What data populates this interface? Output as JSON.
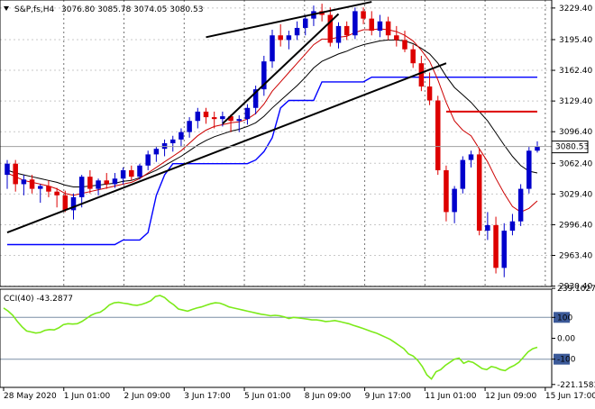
{
  "header": {
    "symbol": "S&P,fs,H4",
    "ohlc": "3076.80 3085.78 3074.05 3080.53"
  },
  "cci_label": "CCI(40) -43.2877",
  "colors": {
    "background": "#ffffff",
    "grid": "#000000",
    "bull": "#0000cc",
    "bear": "#dd0000",
    "ma_fast": "#cc0000",
    "ma_slow": "#000000",
    "envelope": "#0000ff",
    "cci": "#7cea1a",
    "trendline": "#000000",
    "level_line": "#dd0000"
  },
  "chart_data": [
    {
      "type": "candlestick",
      "title": "S&P,fs,H4",
      "ylim": [
        2930.0,
        3238.0
      ],
      "y_ticks": [
        "3229.40",
        "3195.40",
        "3162.40",
        "3129.40",
        "3096.40",
        "3062.40",
        "3029.40",
        "2996.40",
        "2963.40",
        "2930.40"
      ],
      "x_ticks": [
        "28 May 2020",
        "1 Jun 01:00",
        "2 Jun 09:00",
        "3 Jun 17:00",
        "5 Jun 01:00",
        "8 Jun 09:00",
        "9 Jun 17:00",
        "11 Jun 01:00",
        "12 Jun 09:00",
        "15 Jun 17:00"
      ],
      "current_price_label": "3080.53",
      "candles": [
        {
          "o": 3050,
          "h": 3066,
          "l": 3035,
          "c": 3062
        },
        {
          "o": 3062,
          "h": 3066,
          "l": 3032,
          "c": 3040
        },
        {
          "o": 3040,
          "h": 3050,
          "l": 3028,
          "c": 3045
        },
        {
          "o": 3045,
          "h": 3050,
          "l": 3030,
          "c": 3035
        },
        {
          "o": 3035,
          "h": 3040,
          "l": 3020,
          "c": 3038
        },
        {
          "o": 3038,
          "h": 3044,
          "l": 3026,
          "c": 3032
        },
        {
          "o": 3032,
          "h": 3036,
          "l": 3015,
          "c": 3028
        },
        {
          "o": 3028,
          "h": 3033,
          "l": 3010,
          "c": 3012
        },
        {
          "o": 3012,
          "h": 3030,
          "l": 3002,
          "c": 3026
        },
        {
          "o": 3026,
          "h": 3050,
          "l": 3015,
          "c": 3048
        },
        {
          "o": 3048,
          "h": 3055,
          "l": 3030,
          "c": 3035
        },
        {
          "o": 3035,
          "h": 3046,
          "l": 3028,
          "c": 3044
        },
        {
          "o": 3044,
          "h": 3052,
          "l": 3035,
          "c": 3040
        },
        {
          "o": 3040,
          "h": 3052,
          "l": 3036,
          "c": 3046
        },
        {
          "o": 3046,
          "h": 3058,
          "l": 3040,
          "c": 3055
        },
        {
          "o": 3055,
          "h": 3060,
          "l": 3044,
          "c": 3048
        },
        {
          "o": 3048,
          "h": 3062,
          "l": 3045,
          "c": 3060
        },
        {
          "o": 3060,
          "h": 3076,
          "l": 3055,
          "c": 3072
        },
        {
          "o": 3072,
          "h": 3080,
          "l": 3064,
          "c": 3078
        },
        {
          "o": 3078,
          "h": 3088,
          "l": 3070,
          "c": 3084
        },
        {
          "o": 3084,
          "h": 3092,
          "l": 3075,
          "c": 3088
        },
        {
          "o": 3088,
          "h": 3100,
          "l": 3080,
          "c": 3096
        },
        {
          "o": 3096,
          "h": 3112,
          "l": 3090,
          "c": 3108
        },
        {
          "o": 3108,
          "h": 3122,
          "l": 3100,
          "c": 3118
        },
        {
          "o": 3118,
          "h": 3122,
          "l": 3105,
          "c": 3112
        },
        {
          "o": 3112,
          "h": 3118,
          "l": 3100,
          "c": 3110
        },
        {
          "o": 3110,
          "h": 3118,
          "l": 3102,
          "c": 3113
        },
        {
          "o": 3113,
          "h": 3115,
          "l": 3096,
          "c": 3108
        },
        {
          "o": 3108,
          "h": 3114,
          "l": 3096,
          "c": 3110
        },
        {
          "o": 3110,
          "h": 3126,
          "l": 3104,
          "c": 3122
        },
        {
          "o": 3122,
          "h": 3146,
          "l": 3115,
          "c": 3142
        },
        {
          "o": 3142,
          "h": 3178,
          "l": 3135,
          "c": 3172
        },
        {
          "o": 3172,
          "h": 3206,
          "l": 3165,
          "c": 3200
        },
        {
          "o": 3200,
          "h": 3212,
          "l": 3188,
          "c": 3195
        },
        {
          "o": 3195,
          "h": 3205,
          "l": 3185,
          "c": 3200
        },
        {
          "o": 3200,
          "h": 3215,
          "l": 3195,
          "c": 3208
        },
        {
          "o": 3208,
          "h": 3222,
          "l": 3200,
          "c": 3218
        },
        {
          "o": 3218,
          "h": 3232,
          "l": 3210,
          "c": 3226
        },
        {
          "o": 3226,
          "h": 3234,
          "l": 3215,
          "c": 3222
        },
        {
          "o": 3222,
          "h": 3230,
          "l": 3188,
          "c": 3192
        },
        {
          "o": 3192,
          "h": 3214,
          "l": 3186,
          "c": 3210
        },
        {
          "o": 3210,
          "h": 3215,
          "l": 3195,
          "c": 3200
        },
        {
          "o": 3200,
          "h": 3230,
          "l": 3196,
          "c": 3226
        },
        {
          "o": 3226,
          "h": 3230,
          "l": 3212,
          "c": 3218
        },
        {
          "o": 3218,
          "h": 3226,
          "l": 3200,
          "c": 3205
        },
        {
          "o": 3205,
          "h": 3222,
          "l": 3198,
          "c": 3215
        },
        {
          "o": 3215,
          "h": 3220,
          "l": 3195,
          "c": 3200
        },
        {
          "o": 3200,
          "h": 3210,
          "l": 3188,
          "c": 3195
        },
        {
          "o": 3195,
          "h": 3205,
          "l": 3182,
          "c": 3185
        },
        {
          "o": 3185,
          "h": 3190,
          "l": 3165,
          "c": 3170
        },
        {
          "o": 3170,
          "h": 3178,
          "l": 3140,
          "c": 3145
        },
        {
          "o": 3145,
          "h": 3160,
          "l": 3125,
          "c": 3130
        },
        {
          "o": 3130,
          "h": 3135,
          "l": 3050,
          "c": 3055
        },
        {
          "o": 3055,
          "h": 3060,
          "l": 3000,
          "c": 3010
        },
        {
          "o": 3010,
          "h": 3038,
          "l": 2998,
          "c": 3035
        },
        {
          "o": 3035,
          "h": 3070,
          "l": 3030,
          "c": 3066
        },
        {
          "o": 3066,
          "h": 3076,
          "l": 3058,
          "c": 3072
        },
        {
          "o": 3072,
          "h": 3078,
          "l": 2985,
          "c": 2990
        },
        {
          "o": 2990,
          "h": 3010,
          "l": 2980,
          "c": 2996
        },
        {
          "o": 2996,
          "h": 3005,
          "l": 2944,
          "c": 2950
        },
        {
          "o": 2950,
          "h": 2998,
          "l": 2940,
          "c": 2990
        },
        {
          "o": 2990,
          "h": 3008,
          "l": 2985,
          "c": 3000
        },
        {
          "o": 3000,
          "h": 3040,
          "l": 2995,
          "c": 3035
        },
        {
          "o": 3035,
          "h": 3080,
          "l": 3030,
          "c": 3076
        },
        {
          "o": 3076,
          "h": 3086,
          "l": 3074,
          "c": 3080.53
        }
      ],
      "ma_fast": [
        3052,
        3048,
        3044,
        3042,
        3040,
        3038,
        3035,
        3030,
        3028,
        3030,
        3032,
        3034,
        3036,
        3038,
        3040,
        3042,
        3046,
        3052,
        3058,
        3064,
        3070,
        3076,
        3084,
        3092,
        3098,
        3102,
        3104,
        3106,
        3107,
        3110,
        3116,
        3126,
        3140,
        3150,
        3160,
        3170,
        3180,
        3190,
        3196,
        3196,
        3198,
        3199,
        3203,
        3206,
        3206,
        3207,
        3206,
        3204,
        3200,
        3194,
        3184,
        3172,
        3152,
        3128,
        3108,
        3098,
        3092,
        3078,
        3064,
        3046,
        3030,
        3016,
        3010,
        3014,
        3022
      ],
      "ma_slow": [
        3055,
        3052,
        3050,
        3048,
        3046,
        3044,
        3042,
        3039,
        3037,
        3037,
        3038,
        3039,
        3040,
        3041,
        3043,
        3044,
        3047,
        3051,
        3055,
        3060,
        3065,
        3070,
        3076,
        3082,
        3087,
        3091,
        3094,
        3097,
        3099,
        3102,
        3106,
        3113,
        3122,
        3130,
        3138,
        3146,
        3155,
        3165,
        3172,
        3176,
        3180,
        3183,
        3187,
        3190,
        3192,
        3194,
        3195,
        3195,
        3194,
        3191,
        3186,
        3180,
        3170,
        3156,
        3144,
        3136,
        3128,
        3118,
        3108,
        3095,
        3082,
        3070,
        3060,
        3054,
        3052
      ],
      "envelope": [
        2975,
        2975,
        2975,
        2975,
        2975,
        2975,
        2975,
        2975,
        2975,
        2975,
        2975,
        2975,
        2975,
        2975,
        2980,
        2980,
        2980,
        2988,
        3028,
        3050,
        3062,
        3062,
        3062,
        3062,
        3062,
        3062,
        3062,
        3062,
        3062,
        3062,
        3066,
        3075,
        3090,
        3122,
        3130,
        3130,
        3130,
        3130,
        3150,
        3150,
        3150,
        3150,
        3150,
        3150,
        3155,
        3155,
        3155,
        3155,
        3155,
        3155,
        3155,
        3155,
        3155,
        3155,
        3155,
        3155,
        3155,
        3155,
        3155,
        3155,
        3155,
        3155,
        3155,
        3155,
        3155
      ],
      "level_line": {
        "value": 3118,
        "from_index": 53,
        "to_index": 64
      },
      "trendlines": [
        {
          "from": {
            "i": 0,
            "v": 2988
          },
          "to": {
            "i": 53,
            "v": 3170
          }
        },
        {
          "from": {
            "i": 26,
            "v": 3105
          },
          "to": {
            "i": 40,
            "v": 3223
          }
        },
        {
          "from": {
            "i": 24,
            "v": 3198
          },
          "to": {
            "i": 44,
            "v": 3236
          }
        }
      ]
    },
    {
      "type": "line",
      "title": "CCI(40) -43.2877",
      "ylim": [
        -235,
        235
      ],
      "y_ticks": [
        "239.1027",
        "100",
        "0.00",
        "-100",
        "-221.1583"
      ],
      "values": [
        145,
        130,
        110,
        80,
        55,
        35,
        30,
        25,
        28,
        38,
        42,
        40,
        50,
        65,
        70,
        68,
        70,
        80,
        95,
        110,
        120,
        125,
        140,
        160,
        170,
        172,
        168,
        165,
        160,
        158,
        162,
        170,
        180,
        200,
        205,
        195,
        175,
        160,
        140,
        135,
        130,
        138,
        145,
        150,
        158,
        165,
        170,
        168,
        160,
        150,
        145,
        140,
        135,
        130,
        125,
        120,
        115,
        112,
        108,
        110,
        108,
        102,
        95,
        100,
        98,
        95,
        92,
        88,
        88,
        85,
        80,
        82,
        85,
        80,
        75,
        70,
        62,
        55,
        48,
        40,
        32,
        25,
        15,
        5,
        -5,
        -20,
        -35,
        -50,
        -75,
        -85,
        -105,
        -135,
        -175,
        -195,
        -160,
        -150,
        -130,
        -115,
        -100,
        -95,
        -120,
        -110,
        -115,
        -130,
        -145,
        -150,
        -135,
        -140,
        -150,
        -155,
        -140,
        -130,
        -115,
        -90,
        -65,
        -50,
        -43
      ]
    }
  ]
}
